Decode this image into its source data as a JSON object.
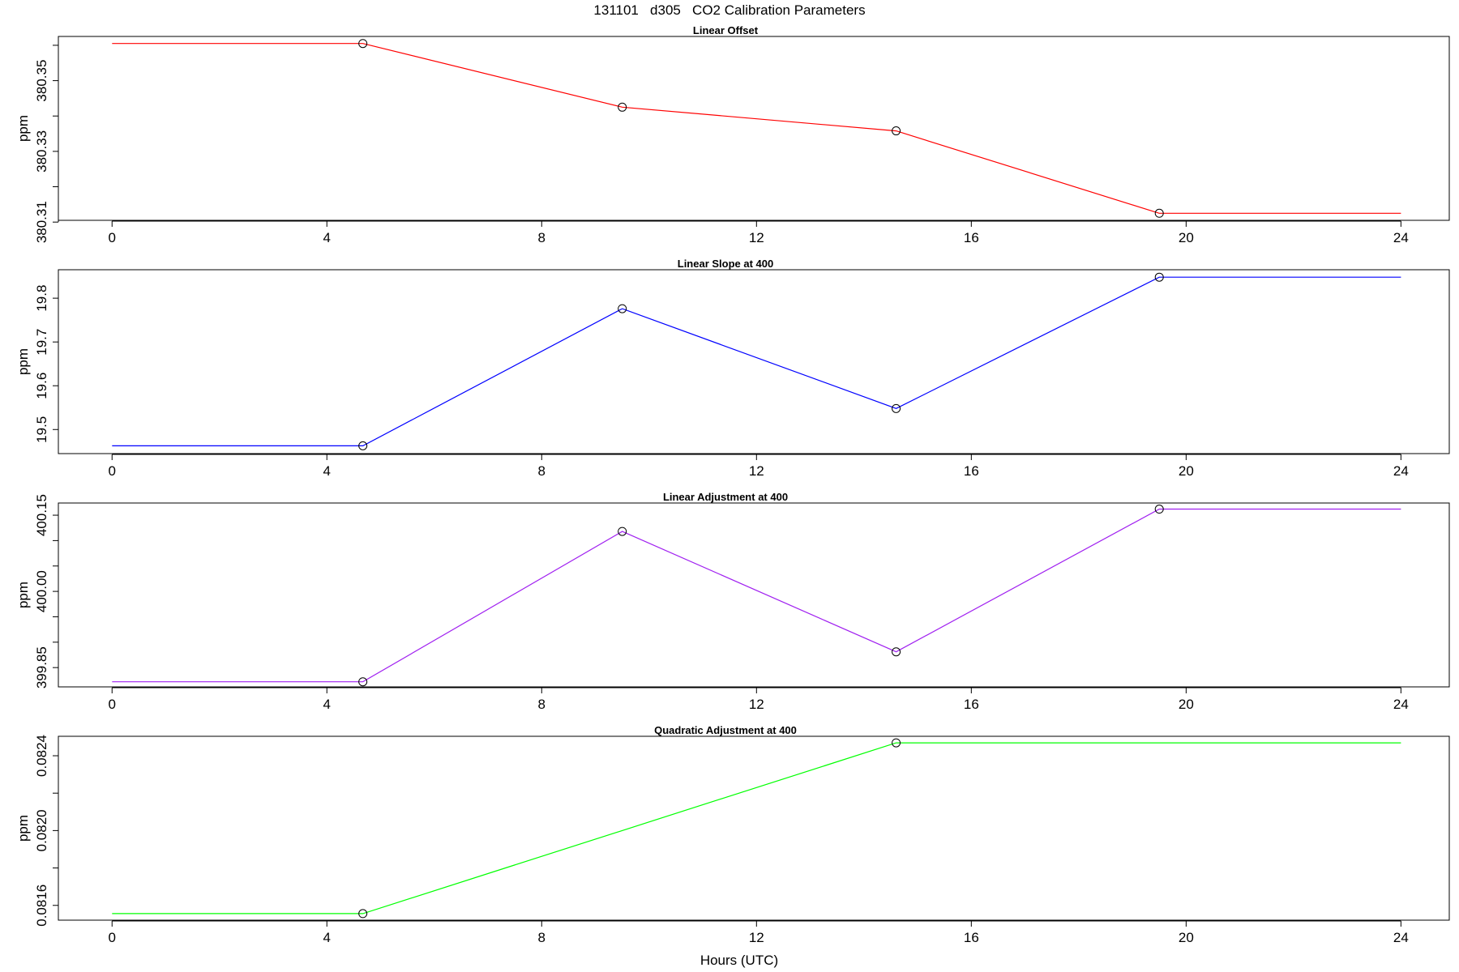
{
  "title": "131101   d305   CO2 Calibration Parameters",
  "chart_data": [
    {
      "type": "line",
      "title": "Linear Offset",
      "ylabel": "ppm",
      "xlabel": "",
      "color": "#ff0000",
      "x": [
        0,
        4.67,
        9.5,
        14.6,
        19.5,
        24
      ],
      "values": [
        380.3605,
        380.3605,
        380.3425,
        380.3358,
        380.3125,
        380.3125
      ],
      "marker_x": [
        4.67,
        9.5,
        14.6,
        19.5
      ],
      "marker_values": [
        380.3605,
        380.3425,
        380.3358,
        380.3125
      ],
      "xlim": [
        -1,
        24.9
      ],
      "ylim": [
        380.3105,
        380.3625
      ],
      "xticks": [
        0,
        4,
        8,
        12,
        16,
        20,
        24
      ],
      "yticks": [
        380.31,
        380.32,
        380.33,
        380.34,
        380.35,
        380.36
      ],
      "yticklabels": [
        "380.31",
        "",
        "380.33",
        "",
        "380.35",
        ""
      ]
    },
    {
      "type": "line",
      "title": "Linear Slope at 400",
      "ylabel": "ppm",
      "xlabel": "",
      "color": "#0000ff",
      "x": [
        0,
        4.67,
        9.5,
        14.6,
        19.5,
        24
      ],
      "values": [
        19.4628,
        19.4628,
        19.776,
        19.548,
        19.848,
        19.848
      ],
      "marker_x": [
        4.67,
        9.5,
        14.6,
        19.5
      ],
      "marker_values": [
        19.4628,
        19.776,
        19.548,
        19.848
      ],
      "xlim": [
        -1,
        24.9
      ],
      "ylim": [
        19.445,
        19.865
      ],
      "xticks": [
        0,
        4,
        8,
        12,
        16,
        20,
        24
      ],
      "yticks": [
        19.5,
        19.6,
        19.7,
        19.8
      ],
      "yticklabels": [
        "19.5",
        "19.6",
        "19.7",
        "19.8"
      ]
    },
    {
      "type": "line",
      "title": "Linear Adjustment at 400",
      "ylabel": "ppm",
      "xlabel": "",
      "color": "#a020f0",
      "x": [
        0,
        4.67,
        9.5,
        14.6,
        19.5,
        24
      ],
      "values": [
        399.822,
        399.822,
        400.118,
        399.881,
        400.162,
        400.162
      ],
      "marker_x": [
        4.67,
        9.5,
        14.6,
        19.5
      ],
      "marker_values": [
        399.822,
        400.118,
        399.881,
        400.162
      ],
      "xlim": [
        -1,
        24.9
      ],
      "ylim": [
        399.812,
        400.174
      ],
      "xticks": [
        0,
        4,
        8,
        12,
        16,
        20,
        24
      ],
      "yticks": [
        399.85,
        399.9,
        399.95,
        400.0,
        400.05,
        400.1,
        400.15
      ],
      "yticklabels": [
        "399.85",
        "",
        "",
        "400.00",
        "",
        "",
        "400.15"
      ]
    },
    {
      "type": "line",
      "title": "Quadratic Adjustment at 400",
      "ylabel": "ppm",
      "xlabel": "Hours (UTC)",
      "color": "#00ff00",
      "x": [
        0,
        4.67,
        14.6,
        24
      ],
      "values": [
        0.081556,
        0.081556,
        0.082469,
        0.082469
      ],
      "marker_x": [
        4.67,
        14.6
      ],
      "marker_values": [
        0.081556,
        0.082469
      ],
      "xlim": [
        -1,
        24.9
      ],
      "ylim": [
        0.081521,
        0.082504
      ],
      "xticks": [
        0,
        4,
        8,
        12,
        16,
        20,
        24
      ],
      "yticks": [
        0.0816,
        0.0818,
        0.082,
        0.0822,
        0.0824
      ],
      "yticklabels": [
        "0.0816",
        "",
        "0.0820",
        "",
        "0.0824"
      ]
    }
  ]
}
